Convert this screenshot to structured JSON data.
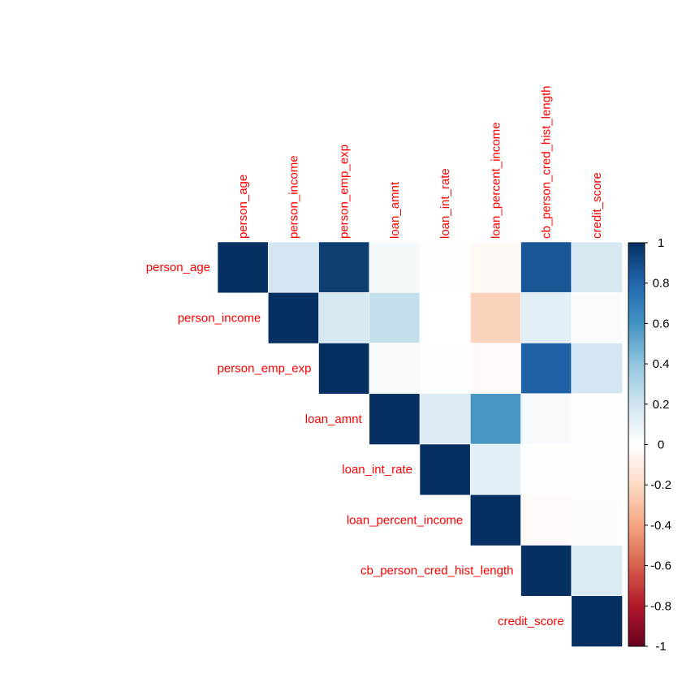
{
  "chart_data": {
    "type": "heatmap",
    "layout": "upper-triangle",
    "variables": [
      "person_age",
      "person_income",
      "person_emp_exp",
      "loan_amnt",
      "loan_int_rate",
      "loan_percent_income",
      "cb_person_cred_hist_length",
      "credit_score"
    ],
    "matrix": [
      [
        1.0,
        0.19,
        0.95,
        0.05,
        0.01,
        -0.04,
        0.86,
        0.18
      ],
      [
        null,
        1.0,
        0.18,
        0.24,
        0.0,
        -0.23,
        0.12,
        0.03
      ],
      [
        null,
        null,
        1.0,
        0.04,
        0.01,
        -0.03,
        0.82,
        0.19
      ],
      [
        null,
        null,
        null,
        1.0,
        0.15,
        0.59,
        0.04,
        0.01
      ],
      [
        null,
        null,
        null,
        null,
        1.0,
        0.12,
        0.01,
        0.01
      ],
      [
        null,
        null,
        null,
        null,
        null,
        1.0,
        -0.03,
        -0.02
      ],
      [
        null,
        null,
        null,
        null,
        null,
        null,
        1.0,
        0.16
      ],
      [
        null,
        null,
        null,
        null,
        null,
        null,
        null,
        1.0
      ]
    ],
    "colorbar": {
      "range": [
        -1,
        1
      ],
      "ticks": [
        "1",
        "0.8",
        "0.6",
        "0.4",
        "0.2",
        "0",
        "-0.2",
        "-0.4",
        "-0.6",
        "-0.8",
        "-1"
      ],
      "palette": [
        "#67001F",
        "#B2182B",
        "#D6604D",
        "#F4A582",
        "#FDDBC7",
        "#FFFFFF",
        "#D1E5F0",
        "#92C5DE",
        "#4393C3",
        "#2166AC",
        "#053061"
      ]
    },
    "label_color": "#FF0000",
    "title": ""
  }
}
